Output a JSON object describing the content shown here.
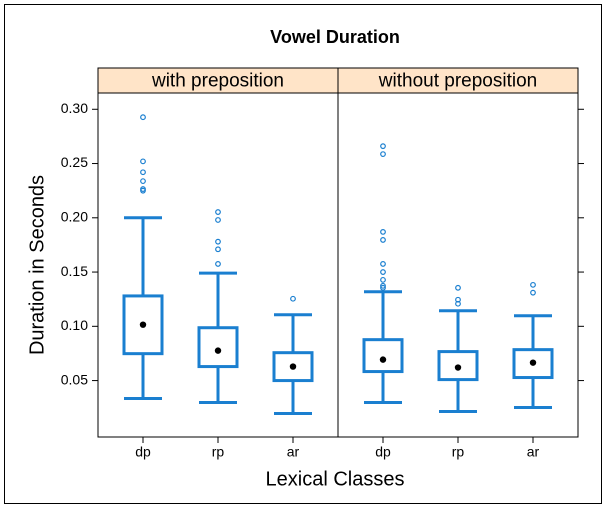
{
  "chart_data": {
    "type": "box",
    "title": "Vowel Duration",
    "xlabel": "Lexical Classes",
    "ylabel": "Duration in Seconds",
    "color": "#1a7fd0",
    "median_color": "#000000",
    "strip_color": "#ffe4c8",
    "ylim": [
      -0.002,
      0.315
    ],
    "yticks": [
      0.05,
      {
        "value": 0.1,
        "label": "0.10"
      },
      0.15,
      {
        "value": 0.2,
        "label": "0.20"
      },
      0.25,
      {
        "value": 0.3,
        "label": "0.30"
      }
    ],
    "panels": [
      {
        "strip": "with preposition",
        "categories": [
          "dp",
          "rp",
          "ar"
        ],
        "whisker_low": [
          0.0335,
          0.0298,
          0.0197
        ],
        "q1": [
          0.0748,
          0.0629,
          0.05
        ],
        "median": [
          0.1015,
          0.0776,
          0.0629
        ],
        "q3": [
          0.128,
          0.0987,
          0.0757
        ],
        "whisker_high": [
          0.2,
          0.149,
          0.1107
        ],
        "outliers": [
          [
            0.2927,
            0.252,
            0.242,
            0.2338,
            0.2265,
            0.225
          ],
          [
            0.2053,
            0.198,
            0.178,
            0.171,
            0.1575
          ],
          [
            0.1254
          ]
        ]
      },
      {
        "strip": "without preposition",
        "categories": [
          "dp",
          "rp",
          "ar"
        ],
        "whisker_low": [
          0.0298,
          0.0215,
          0.0252
        ],
        "q1": [
          0.0583,
          0.0509,
          0.0528
        ],
        "median": [
          0.0693,
          0.062,
          0.0665
        ],
        "q3": [
          0.0877,
          0.0767,
          0.0785
        ],
        "whisker_high": [
          0.1318,
          0.1143,
          0.1097
        ],
        "outliers": [
          [
            0.266,
            0.2587,
            0.187,
            0.1796,
            0.1575,
            0.15,
            0.1428,
            0.1373,
            0.1355
          ],
          [
            0.1355,
            0.1245,
            0.1208
          ],
          [
            0.1382,
            0.131
          ]
        ]
      }
    ]
  }
}
